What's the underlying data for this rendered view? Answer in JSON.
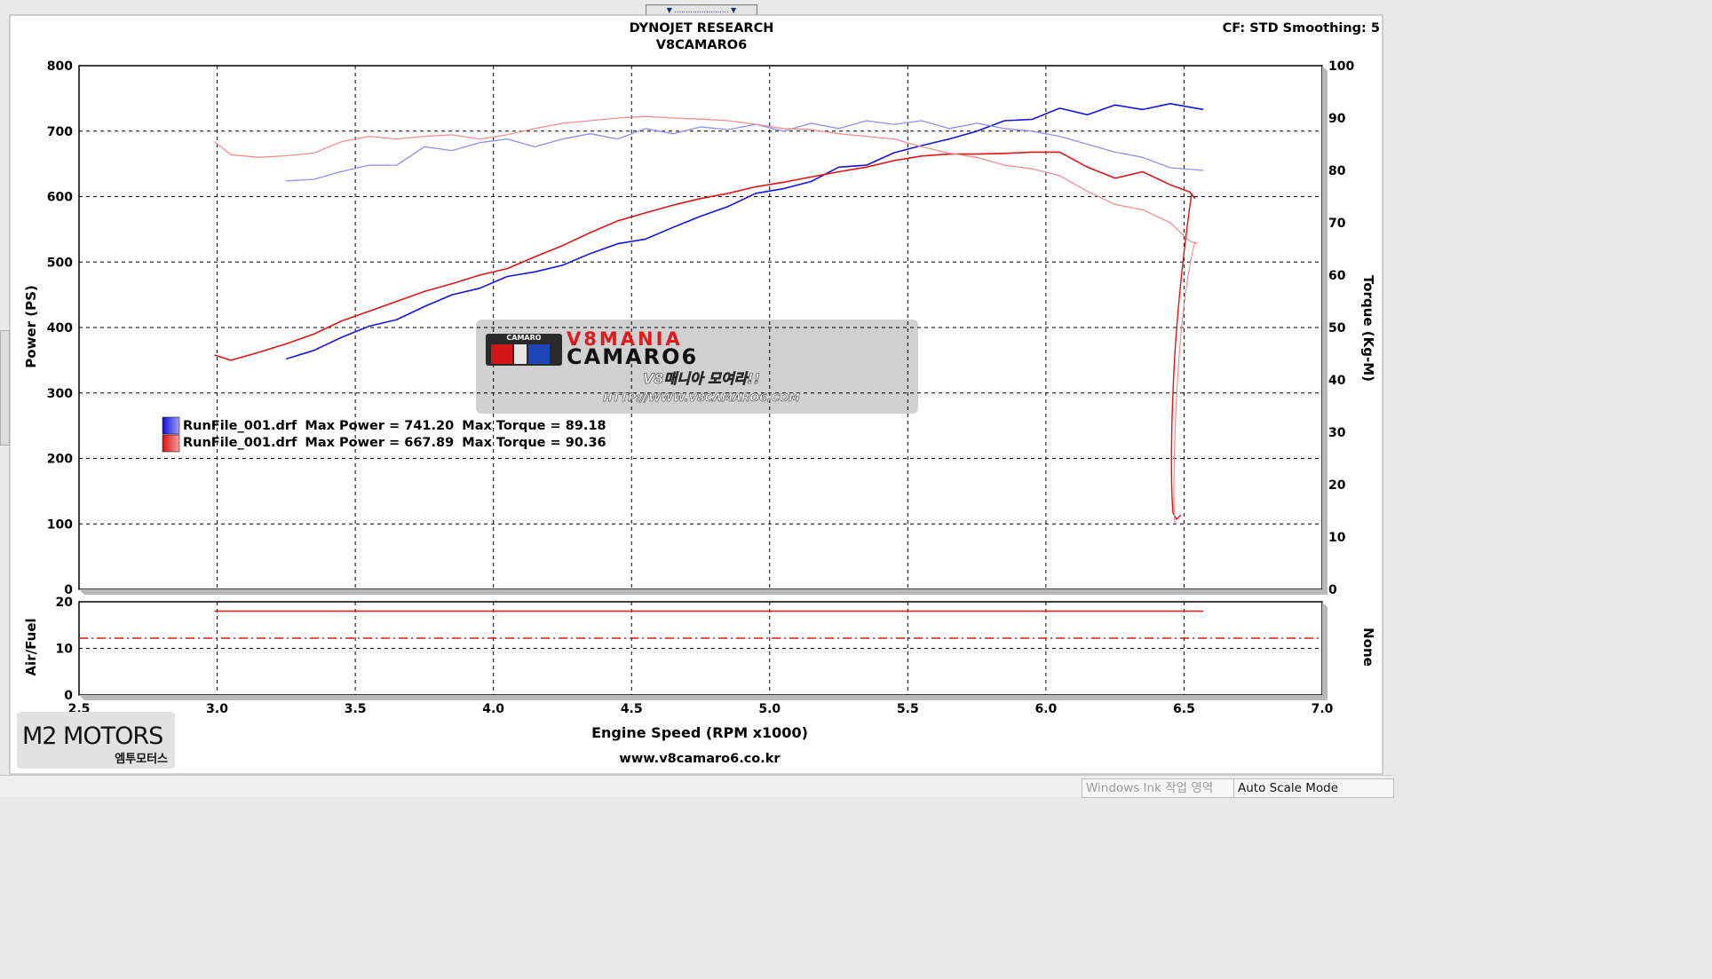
{
  "header": {
    "title": "DYNOJET RESEARCH",
    "subtitle": "V8CAMARO6",
    "settings": "CF: STD  Smoothing: 5"
  },
  "watermark": {
    "brand_line1": "V8MANIA",
    "brand_line2": "CAMARO6",
    "badge": "CAMARO",
    "korean": "V8매니아 모여라!!",
    "url": "HTTP://WWW.V8CAMARO6.COM"
  },
  "footer": {
    "xlabel": "Engine Speed (RPM x1000)",
    "site": "www.v8camaro6.co.kr",
    "logo_main": "M2 MOTORS",
    "logo_sub": "엠투모터스"
  },
  "statusbar": {
    "ink": "Windows Ink 작업 영역",
    "mode": "Auto Scale Mode"
  },
  "legend": [
    {
      "file": "RunFile_001.drf",
      "max_power_label": "Max Power = 741.20",
      "max_torque_label": "Max Torque = 89.18",
      "color": "#1515e0"
    },
    {
      "file": "RunFile_001.drf",
      "max_power_label": "Max Power = 667.89",
      "max_torque_label": "Max Torque = 90.36",
      "color": "#e01515"
    }
  ],
  "chart_data": [
    {
      "type": "line",
      "ylabel": "Power (PS)",
      "y2label": "Torque (Kg-M)",
      "xlabel": "Engine Speed (RPM x1000)",
      "xlim": [
        2.5,
        7.0
      ],
      "ylim": [
        0,
        800
      ],
      "y2lim": [
        0,
        100
      ],
      "x_ticks": [
        "2.5",
        "3.0",
        "3.5",
        "4.0",
        "4.5",
        "5.0",
        "5.5",
        "6.0",
        "6.5",
        "7.0"
      ],
      "y_ticks": [
        "0",
        "100",
        "200",
        "300",
        "400",
        "500",
        "600",
        "700",
        "800"
      ],
      "y2_ticks": [
        "0",
        "10",
        "20",
        "30",
        "40",
        "50",
        "60",
        "70",
        "80",
        "90",
        "100"
      ],
      "grid": true,
      "legend_position": "middle-left",
      "series": [
        {
          "axis": "power",
          "color": "#1515e0",
          "x": [
            3.25,
            3.35,
            3.45,
            3.55,
            3.65,
            3.75,
            3.85,
            3.95,
            4.05,
            4.15,
            4.25,
            4.35,
            4.45,
            4.55,
            4.65,
            4.75,
            4.85,
            4.95,
            5.05,
            5.15,
            5.25,
            5.35,
            5.45,
            5.55,
            5.65,
            5.75,
            5.85,
            5.95,
            6.05,
            6.15,
            6.25,
            6.35,
            6.45,
            6.57
          ],
          "y": [
            352,
            365,
            385,
            402,
            412,
            432,
            450,
            460,
            478,
            485,
            495,
            513,
            528,
            535,
            553,
            570,
            585,
            605,
            612,
            623,
            645,
            648,
            667,
            678,
            688,
            700,
            716,
            718,
            735,
            725,
            740,
            733,
            742,
            733
          ]
        },
        {
          "axis": "power",
          "color": "#e01515",
          "x": [
            2.99,
            3.05,
            3.15,
            3.25,
            3.35,
            3.45,
            3.55,
            3.65,
            3.75,
            3.85,
            3.95,
            4.05,
            4.15,
            4.25,
            4.35,
            4.45,
            4.55,
            4.65,
            4.75,
            4.85,
            4.95,
            5.05,
            5.15,
            5.25,
            5.35,
            5.45,
            5.55,
            5.65,
            5.75,
            5.85,
            5.95,
            6.05,
            6.15,
            6.25,
            6.35,
            6.45,
            6.52,
            6.54
          ],
          "y": [
            358,
            350,
            362,
            375,
            390,
            410,
            425,
            440,
            455,
            467,
            480,
            490,
            508,
            525,
            545,
            563,
            575,
            587,
            597,
            605,
            615,
            622,
            630,
            638,
            645,
            655,
            662,
            665,
            665,
            666,
            668,
            668,
            645,
            628,
            638,
            618,
            607,
            597
          ]
        },
        {
          "axis": "torque",
          "color": "#8f8ff0",
          "x": [
            3.25,
            3.35,
            3.45,
            3.55,
            3.65,
            3.75,
            3.85,
            3.95,
            4.05,
            4.15,
            4.25,
            4.35,
            4.45,
            4.55,
            4.65,
            4.75,
            4.85,
            4.95,
            5.05,
            5.15,
            5.25,
            5.35,
            5.45,
            5.55,
            5.65,
            5.75,
            5.85,
            5.95,
            6.05,
            6.15,
            6.25,
            6.35,
            6.45,
            6.57
          ],
          "y": [
            78.0,
            78.3,
            79.8,
            81.0,
            81.0,
            84.5,
            83.8,
            85.3,
            86.0,
            84.5,
            86.0,
            87.0,
            86.0,
            88.0,
            87.0,
            88.3,
            87.8,
            88.8,
            87.5,
            89.0,
            88.0,
            89.5,
            88.8,
            89.5,
            88.0,
            89.0,
            88.0,
            87.5,
            86.5,
            85.0,
            83.5,
            82.5,
            80.5,
            80.0
          ]
        },
        {
          "axis": "torque",
          "color": "#f08f8f",
          "x": [
            2.99,
            3.05,
            3.15,
            3.25,
            3.35,
            3.45,
            3.55,
            3.65,
            3.75,
            3.85,
            3.95,
            4.05,
            4.15,
            4.25,
            4.35,
            4.45,
            4.55,
            4.65,
            4.75,
            4.85,
            4.95,
            5.05,
            5.15,
            5.25,
            5.35,
            5.45,
            5.55,
            5.65,
            5.75,
            5.85,
            5.95,
            6.05,
            6.15,
            6.25,
            6.35,
            6.45,
            6.52,
            6.55
          ],
          "y": [
            85.5,
            83.0,
            82.5,
            82.8,
            83.3,
            85.5,
            86.5,
            86.0,
            86.5,
            86.8,
            86.0,
            86.8,
            88.0,
            89.0,
            89.5,
            90.0,
            90.3,
            90.0,
            89.8,
            89.5,
            88.8,
            88.0,
            87.8,
            87.0,
            86.5,
            86.0,
            84.5,
            83.3,
            82.5,
            81.0,
            80.3,
            79.0,
            76.0,
            73.5,
            72.5,
            70.0,
            66.5,
            66.0
          ]
        }
      ]
    },
    {
      "type": "line",
      "ylabel": "Air/Fuel",
      "y2label": "None",
      "xlim": [
        2.5,
        7.0
      ],
      "ylim": [
        0,
        20
      ],
      "y_ticks": [
        "0",
        "10",
        "20"
      ],
      "grid": true,
      "series": [
        {
          "color": "#e01515",
          "x": [
            2.99,
            6.57
          ],
          "y": [
            18.0,
            18.0
          ]
        },
        {
          "color": "#e01515",
          "style": "dash-dot",
          "x": [
            2.5,
            7.0
          ],
          "y": [
            12.2,
            12.2
          ]
        }
      ]
    }
  ]
}
